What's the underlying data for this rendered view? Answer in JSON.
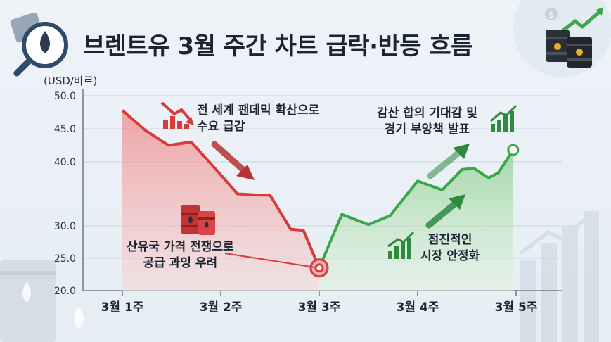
{
  "title": "브렌트유 3월 주간 차트 급락·반등 흐름",
  "unit_label": "(USD/바르)",
  "annotations": {
    "demand": [
      "전 세계 팬데믹 확산으로",
      "수요 급감"
    ],
    "supply": [
      "산유국 가격 전쟁으로",
      "공급 과잉 우려"
    ],
    "stimulus": [
      "감산 합의 기대감 및",
      "경기 부양책 발표"
    ],
    "stabilize": [
      "점진적인",
      "시장 안정화"
    ]
  },
  "colors": {
    "decline": "#d93a3a",
    "rebound": "#3aa84a",
    "title": "#1c2434"
  },
  "icons": [
    "oil-drop-magnifier-icon",
    "oil-barrels-icon",
    "chart-up-arrow-icon",
    "declining-chart-icon",
    "rising-chart-icon",
    "red-oil-barrels-icon"
  ],
  "chart_data": {
    "type": "line",
    "title": "브렌트유 3월 주간 차트 급락·반등 흐름",
    "ylabel": "(USD/바르)",
    "xlabel": "",
    "categories": [
      "3월 1주",
      "3월 2주",
      "3월 3주",
      "3월 4주",
      "3월 5주"
    ],
    "y_ticks": [
      "20.0",
      "25.0",
      "30.0",
      "40.0",
      "45.0",
      "50.0"
    ],
    "y_tick_values": [
      20,
      25,
      30,
      40,
      45,
      50
    ],
    "grid": true,
    "series": [
      {
        "role": "decline",
        "x": [
          0.0,
          0.23,
          0.47,
          0.7,
          0.97,
          1.17,
          1.39,
          1.5,
          1.71,
          1.84,
          2.0
        ],
        "y": [
          47.8,
          44.8,
          42.5,
          43.0,
          38.5,
          35.0,
          34.8,
          34.8,
          29.5,
          29.3,
          23.5
        ]
      },
      {
        "role": "rebound",
        "x": [
          2.0,
          2.23,
          2.5,
          2.72,
          3.0,
          3.25,
          3.45,
          3.57,
          3.72,
          3.82,
          3.97
        ],
        "y": [
          23.5,
          31.8,
          30.2,
          31.6,
          37.0,
          35.6,
          38.8,
          39.0,
          37.5,
          38.3,
          41.8
        ]
      }
    ]
  }
}
